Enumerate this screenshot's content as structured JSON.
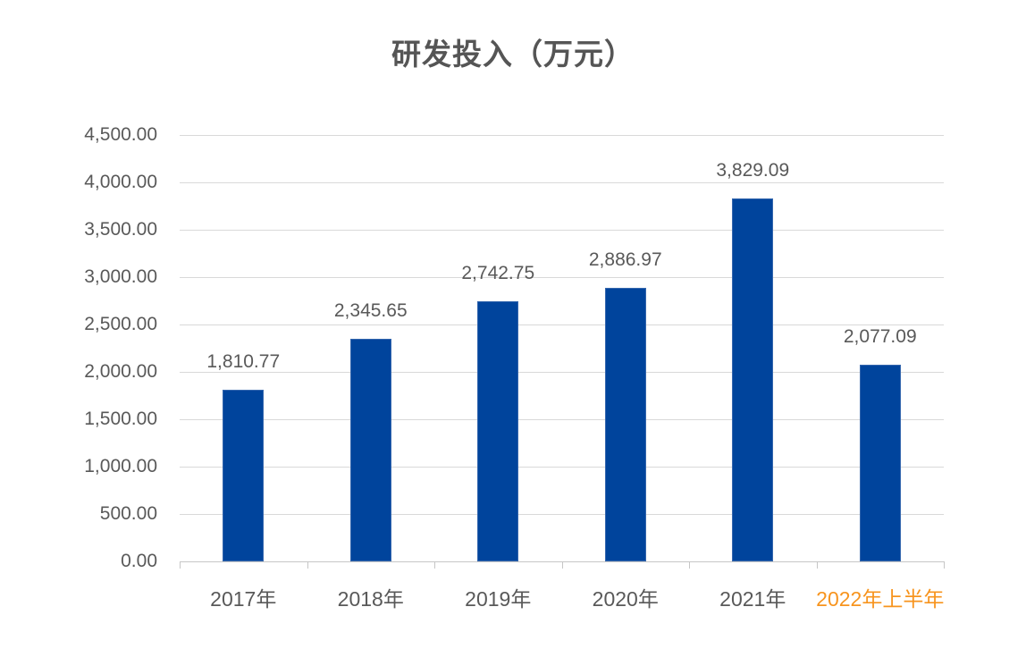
{
  "chart_data": {
    "type": "bar",
    "title": "研发投入（万元）",
    "categories": [
      "2017年",
      "2018年",
      "2019年",
      "2020年",
      "2021年",
      "2022年上半年"
    ],
    "values": [
      1810.77,
      2345.65,
      2742.75,
      2886.97,
      3829.09,
      2077.09
    ],
    "value_labels": [
      "1,810.77",
      "2,345.65",
      "2,742.75",
      "2,886.97",
      "3,829.09",
      "2,077.09"
    ],
    "xlabel": "",
    "ylabel": "",
    "ylim": [
      0,
      4500
    ],
    "ytick_step": 500,
    "ytick_labels": [
      "0.00",
      "500.00",
      "1,000.00",
      "1,500.00",
      "2,000.00",
      "2,500.00",
      "3,000.00",
      "3,500.00",
      "4,000.00",
      "4,500.00"
    ],
    "grid": true,
    "legend": "none",
    "highlight_category_index": 5,
    "colors": {
      "bar_fill": "#00449C",
      "bar_border": "#3567AE",
      "grid_line": "#D9D9D9",
      "axis_line": "#C6C6C6",
      "title_text": "#555555",
      "axis_text": "#595959",
      "value_text": "#595959",
      "highlight_category_text": "#F7941E",
      "background": "#FFFFFF"
    }
  }
}
